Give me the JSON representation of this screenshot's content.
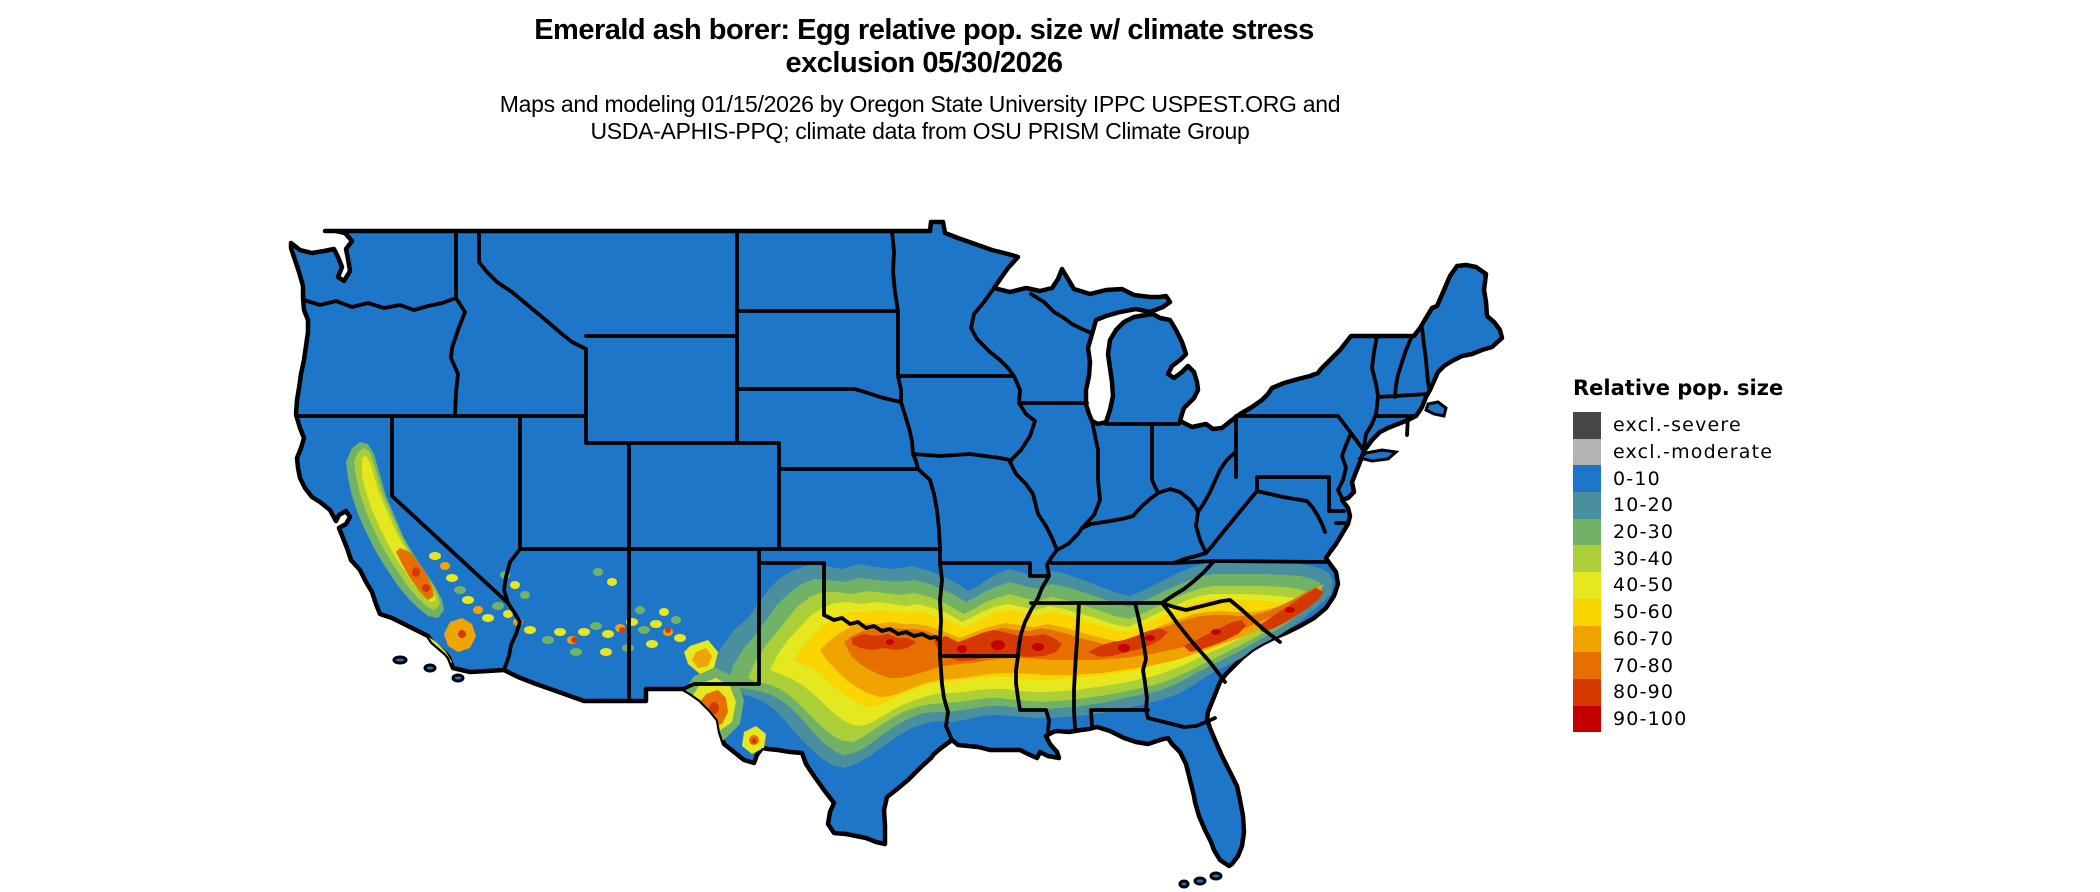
{
  "title": {
    "line1": "Emerald ash borer: Egg relative pop. size w/ climate stress",
    "line2": "exclusion 05/30/2026"
  },
  "subtitle": {
    "line1": "Maps and modeling 01/15/2026 by Oregon State University IPPC USPEST.ORG and",
    "line2": "USDA-APHIS-PPQ; climate data from OSU PRISM Climate Group"
  },
  "legend": {
    "title": "Relative pop. size",
    "entries": [
      {
        "label": "excl.-severe",
        "key": "excl_severe"
      },
      {
        "label": "excl.-moderate",
        "key": "excl_moderate"
      },
      {
        "label": "0-10",
        "key": "b0"
      },
      {
        "label": "10-20",
        "key": "b10"
      },
      {
        "label": "20-30",
        "key": "b20"
      },
      {
        "label": "30-40",
        "key": "b30"
      },
      {
        "label": "40-50",
        "key": "b40"
      },
      {
        "label": "50-60",
        "key": "b50"
      },
      {
        "label": "60-70",
        "key": "b60"
      },
      {
        "label": "70-80",
        "key": "b70"
      },
      {
        "label": "80-90",
        "key": "b80"
      },
      {
        "label": "90-100",
        "key": "b90"
      }
    ]
  },
  "palette": {
    "excl_severe": "#474747",
    "excl_moderate": "#b3b3b3",
    "b0": "#1e76c8",
    "b10": "#4a8f9e",
    "b20": "#72b266",
    "b30": "#aacf38",
    "b40": "#e5e71f",
    "b50": "#fbd500",
    "b60": "#f0a400",
    "b70": "#e66f00",
    "b80": "#d63900",
    "b90": "#c40000"
  },
  "map": {
    "region": "Continental United States",
    "border_color": "#000000",
    "water_color": "#ffffff"
  }
}
